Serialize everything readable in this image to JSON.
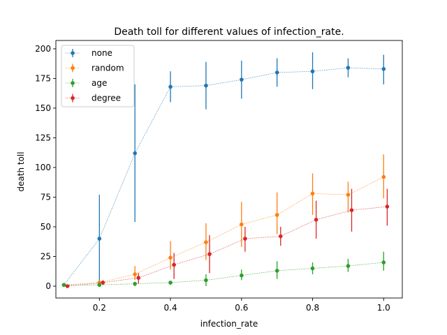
{
  "chart_data": {
    "type": "line",
    "title": "Death toll for different values of infection_rate.",
    "xlabel": "infection_rate",
    "ylabel": "death toll",
    "xlim": [
      0.0775,
      1.0525
    ],
    "ylim": [
      -10,
      207
    ],
    "xticks": [
      0.2,
      0.4,
      0.6,
      0.8,
      1.0
    ],
    "xtick_labels": [
      "0.2",
      "0.4",
      "0.6",
      "0.8",
      "1.0"
    ],
    "yticks": [
      0,
      25,
      50,
      75,
      100,
      125,
      150,
      175,
      200
    ],
    "ytick_labels": [
      "0",
      "25",
      "50",
      "75",
      "100",
      "125",
      "150",
      "175",
      "200"
    ],
    "grid": false,
    "legend_position": "top-left",
    "series": [
      {
        "name": "none",
        "color": "#1f77b4",
        "x": [
          0.1,
          0.2,
          0.3,
          0.4,
          0.5,
          0.6,
          0.7,
          0.8,
          0.9,
          1.0
        ],
        "values": [
          1,
          40,
          112,
          168,
          169,
          174,
          180,
          181,
          184,
          183
        ],
        "err_low": [
          0,
          3,
          54,
          155,
          149,
          158,
          168,
          166,
          176,
          170
        ],
        "err_high": [
          2,
          77,
          170,
          181,
          189,
          190,
          192,
          197,
          192,
          195
        ]
      },
      {
        "name": "random",
        "color": "#ff7f0e",
        "x": [
          0.1,
          0.2,
          0.3,
          0.4,
          0.5,
          0.6,
          0.7,
          0.8,
          0.9,
          1.0
        ],
        "values": [
          1,
          3,
          10,
          24,
          37,
          52,
          60,
          78,
          77,
          92
        ],
        "err_low": [
          0,
          1,
          5,
          14,
          22,
          33,
          44,
          60,
          62,
          74
        ],
        "err_high": [
          2,
          5,
          17,
          38,
          53,
          71,
          79,
          95,
          88,
          111
        ]
      },
      {
        "name": "age",
        "color": "#2ca02c",
        "x": [
          0.1,
          0.2,
          0.3,
          0.4,
          0.5,
          0.6,
          0.7,
          0.8,
          0.9,
          1.0
        ],
        "values": [
          1,
          1,
          2,
          3,
          5,
          9,
          13,
          15,
          17,
          20
        ],
        "err_low": [
          0,
          0,
          0,
          1,
          0,
          5,
          6,
          10,
          12,
          13
        ],
        "err_high": [
          2,
          2,
          3,
          4,
          10,
          14,
          21,
          20,
          23,
          29
        ]
      },
      {
        "name": "degree",
        "color": "#d62728",
        "x": [
          0.11,
          0.21,
          0.31,
          0.41,
          0.51,
          0.61,
          0.71,
          0.81,
          0.91,
          1.01
        ],
        "values": [
          0,
          3,
          7,
          18,
          27,
          40,
          42,
          56,
          64,
          67
        ],
        "err_low": [
          0,
          1,
          2,
          6,
          11,
          29,
          34,
          40,
          46,
          51
        ],
        "err_high": [
          1,
          5,
          11,
          28,
          43,
          50,
          50,
          72,
          82,
          82
        ]
      }
    ]
  }
}
